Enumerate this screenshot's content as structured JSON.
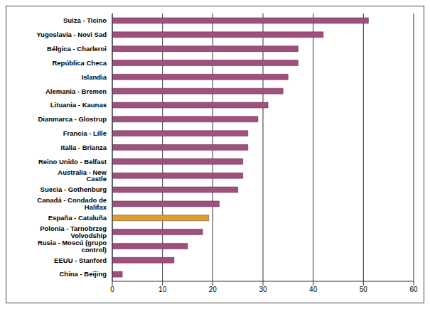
{
  "chart_data": {
    "type": "bar",
    "orientation": "horizontal",
    "categories": [
      "Suiza - Ticino",
      "Yugoslavia - Novi Sad",
      "Bélgica - Charleroi",
      "República Checa",
      "Islandia",
      "Alemania - Bremen",
      "Lituania - Kaunas",
      "Dianmarca - Glostrup",
      "Francia - Lille",
      "Italia - Brianza",
      "Reino Unido - Belfast",
      "Australia - New Castle",
      "Suecia - Gothenburg",
      "Canadá - Condado de Halifax",
      "España - Cataluña",
      "Polonia - Tarnobrzeg Volvodship",
      "Rusia - Moscú (grupo control)",
      "EEUU - Stanford",
      "China - Beijing"
    ],
    "values": [
      51,
      42,
      37,
      37,
      35,
      34,
      31,
      29,
      27,
      27,
      26,
      26,
      25,
      21.3,
      19.2,
      18,
      15,
      12.3,
      2
    ],
    "colors": [
      "#a0507e",
      "#a0507e",
      "#a0507e",
      "#a0507e",
      "#a0507e",
      "#a0507e",
      "#a0507e",
      "#a0507e",
      "#a0507e",
      "#a0507e",
      "#a0507e",
      "#a0507e",
      "#a0507e",
      "#a0507e",
      "#e0a028",
      "#a0507e",
      "#a0507e",
      "#a0507e",
      "#a0507e"
    ],
    "xlim": [
      0,
      60
    ],
    "xticks": [
      0,
      10,
      20,
      30,
      40,
      50,
      60
    ],
    "grid": true
  }
}
